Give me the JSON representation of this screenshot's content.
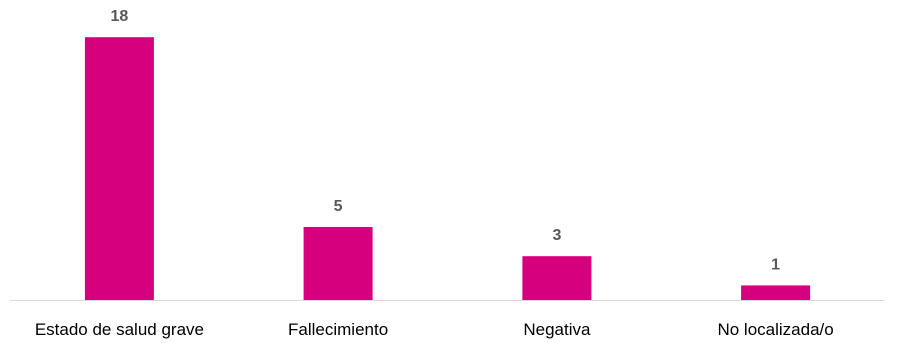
{
  "chart_data": {
    "type": "bar",
    "title": "",
    "xlabel": "",
    "ylabel": "",
    "categories": [
      "Estado de salud grave",
      "Fallecimiento",
      "Negativa",
      "No localizada/o"
    ],
    "values": [
      18,
      5,
      3,
      1
    ],
    "ylim": [
      0,
      20
    ],
    "grid": false,
    "legend": "none",
    "bar_color": "#D6007E",
    "axis_color": "#D9D9D9",
    "data_label_color": "#595959",
    "tick_label_color": "#000000",
    "data_labels": [
      "18",
      "5",
      "3",
      "1"
    ]
  }
}
